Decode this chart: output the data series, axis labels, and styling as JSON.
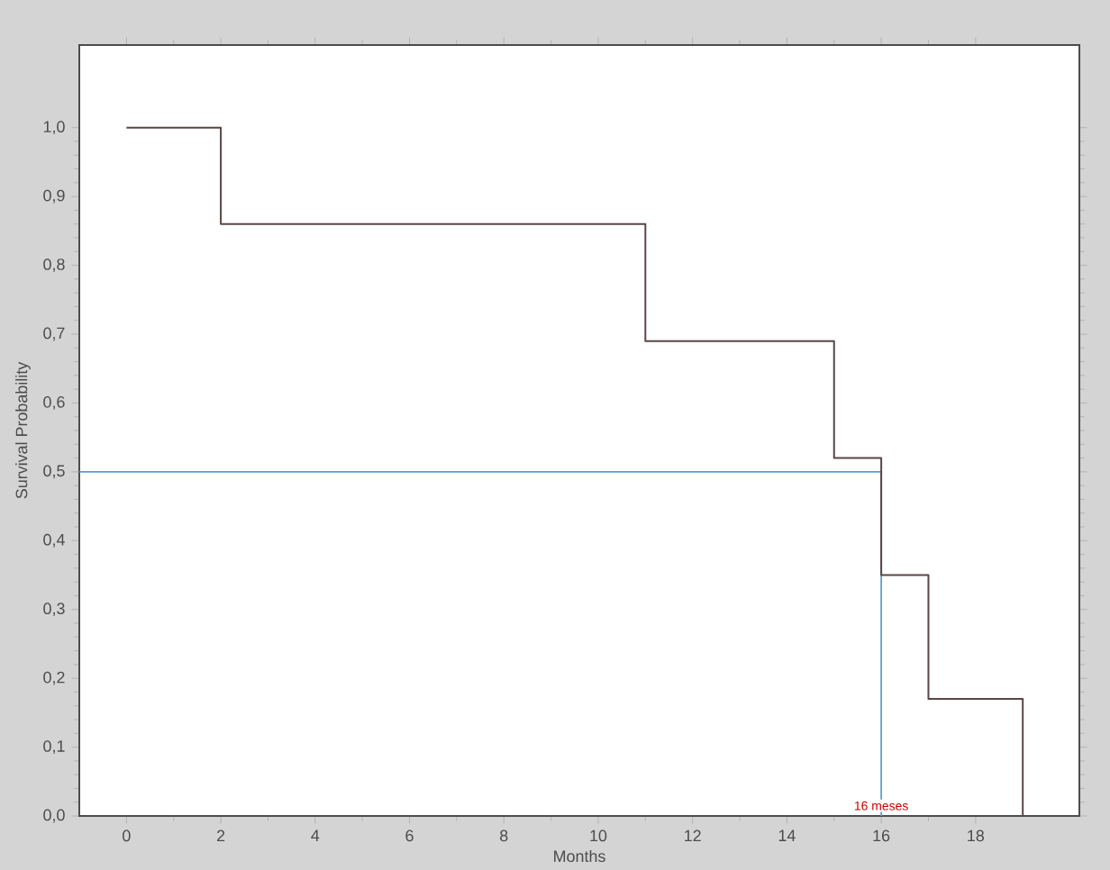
{
  "chart_data": {
    "type": "step",
    "xlabel": "Months",
    "ylabel": "Survival Probability",
    "x": [
      0,
      2,
      11,
      15,
      16,
      17,
      19
    ],
    "series": [
      {
        "color": "#5a4646",
        "values": [
          1,
          0.86,
          0.69,
          0.52,
          0.35,
          0.17,
          0
        ]
      }
    ],
    "xlim": [
      -1,
      20.2
    ],
    "ylim": [
      0,
      1.12
    ],
    "xticks": [
      0,
      2,
      4,
      6,
      8,
      10,
      12,
      14,
      16,
      18
    ],
    "yticks": [
      {
        "value": 0,
        "label": "0,0"
      },
      {
        "value": 0.1,
        "label": "0,1"
      },
      {
        "value": 0.2,
        "label": "0,2"
      },
      {
        "value": 0.3,
        "label": "0,3"
      },
      {
        "value": 0.4,
        "label": "0,4"
      },
      {
        "value": 0.5,
        "label": "0,5"
      },
      {
        "value": 0.6,
        "label": "0,6"
      },
      {
        "value": 0.7,
        "label": "0,7"
      },
      {
        "value": 0.8,
        "label": "0,8"
      },
      {
        "value": 0.9,
        "label": "0,9"
      },
      {
        "value": 1,
        "label": "1,0"
      }
    ],
    "ref_lines": [
      {
        "axis": "y",
        "value": 0.5,
        "color": "#5a9fd0"
      },
      {
        "axis": "x",
        "value": 16,
        "color": "#5a9fd0"
      }
    ],
    "annotations": [
      {
        "text": "16 meses",
        "x": 16,
        "y": 0
      }
    ]
  }
}
